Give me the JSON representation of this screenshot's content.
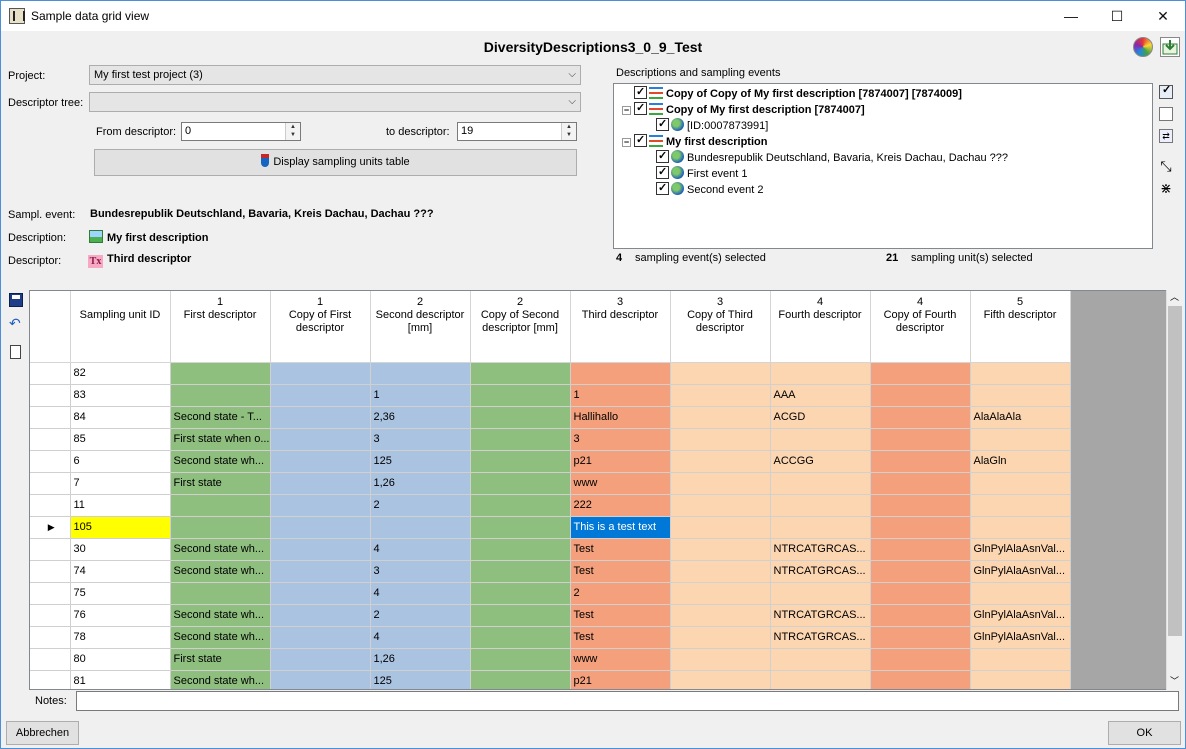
{
  "window": {
    "title": "Sample data grid view",
    "heading": "DiversityDescriptions3_0_9_Test",
    "controls": {
      "minimize": "—",
      "maximize": "☐",
      "close": "✕"
    }
  },
  "form": {
    "project_label": "Project:",
    "project_value": "My first test project (3)",
    "descriptor_tree_label": "Descriptor tree:",
    "descriptor_tree_value": "",
    "from_descriptor_label": "From descriptor:",
    "from_descriptor_value": "0",
    "to_descriptor_label": "to descriptor:",
    "to_descriptor_value": "19",
    "display_button": "Display sampling units table",
    "sampl_event_label": "Sampl. event:",
    "sampl_event_value": "Bundesrepublik Deutschland, Bavaria, Kreis Dachau, Dachau ???",
    "description_label": "Description:",
    "description_value": "My first description",
    "descriptor_label": "Descriptor:",
    "descriptor_value": "Third descriptor"
  },
  "events_panel": {
    "title": "Descriptions and sampling events",
    "tree": [
      {
        "text": "Copy of Copy of My first description [7874007] [7874009]",
        "bold": true,
        "level": 0
      },
      {
        "text": "Copy of My first description [7874007]",
        "bold": true,
        "level": 0
      },
      {
        "text": "[ID:0007873991]",
        "bold": false,
        "level": 1
      },
      {
        "text": "My first description",
        "bold": true,
        "level": 0
      },
      {
        "text": "Bundesrepublik Deutschland, Bavaria, Kreis Dachau, Dachau ???",
        "bold": false,
        "level": 1
      },
      {
        "text": "First event 1",
        "bold": false,
        "level": 1
      },
      {
        "text": "Second event 2",
        "bold": false,
        "level": 1
      }
    ],
    "events_count": "4",
    "events_text": "sampling event(s) selected",
    "units_count": "21",
    "units_text": "sampling unit(s) selected"
  },
  "grid": {
    "columns": [
      {
        "num": "",
        "title": "Sampling unit ID"
      },
      {
        "num": "1",
        "title": "First descriptor"
      },
      {
        "num": "1",
        "title": "Copy of First descriptor"
      },
      {
        "num": "2",
        "title": "Second descriptor [mm]"
      },
      {
        "num": "2",
        "title": "Copy of Second descriptor [mm]"
      },
      {
        "num": "3",
        "title": "Third descriptor"
      },
      {
        "num": "3",
        "title": "Copy of Third descriptor"
      },
      {
        "num": "4",
        "title": "Fourth descriptor"
      },
      {
        "num": "4",
        "title": "Copy of Fourth descriptor"
      },
      {
        "num": "5",
        "title": "Fifth descriptor"
      }
    ],
    "current_row_marker": "▶",
    "rows": [
      [
        "82",
        "",
        "",
        "",
        "",
        "",
        "",
        "",
        "",
        ""
      ],
      [
        "83",
        "",
        "",
        "1",
        "",
        "1",
        "",
        "AAA",
        "",
        ""
      ],
      [
        "84",
        "Second state - T...",
        "",
        "2,36",
        "",
        "Hallihallo",
        "",
        "ACGD",
        "",
        "AlaAlaAla"
      ],
      [
        "85",
        "First state when o...",
        "",
        "3",
        "",
        "3",
        "",
        "",
        "",
        ""
      ],
      [
        "6",
        "Second state wh...",
        "",
        "125",
        "",
        "p21",
        "",
        "ACCGG",
        "",
        "AlaGln"
      ],
      [
        "7",
        "First state",
        "",
        "1,26",
        "",
        "www",
        "",
        "",
        "",
        ""
      ],
      [
        "11",
        "",
        "",
        "2",
        "",
        "222",
        "",
        "",
        "",
        ""
      ],
      [
        "105",
        "",
        "",
        "",
        "",
        "This is a test text",
        "",
        "",
        "",
        ""
      ],
      [
        "30",
        "Second state wh...",
        "",
        "4",
        "",
        "Test",
        "",
        "NTRCATGRCAS...",
        "",
        "GlnPylAlaAsnVal..."
      ],
      [
        "74",
        "Second state wh...",
        "",
        "3",
        "",
        "Test",
        "",
        "NTRCATGRCAS...",
        "",
        "GlnPylAlaAsnVal..."
      ],
      [
        "75",
        "",
        "",
        "4",
        "",
        "2",
        "",
        "",
        "",
        ""
      ],
      [
        "76",
        "Second state wh...",
        "",
        "2",
        "",
        "Test",
        "",
        "NTRCATGRCAS...",
        "",
        "GlnPylAlaAsnVal..."
      ],
      [
        "78",
        "Second state wh...",
        "",
        "4",
        "",
        "Test",
        "",
        "NTRCATGRCAS...",
        "",
        "GlnPylAlaAsnVal..."
      ],
      [
        "80",
        "First state",
        "",
        "1,26",
        "",
        "www",
        "",
        "",
        "",
        ""
      ],
      [
        "81",
        "Second state wh...",
        "",
        "125",
        "",
        "p21",
        "",
        "",
        "",
        ""
      ]
    ],
    "current_row_index": 7
  },
  "footer": {
    "notes_label": "Notes:",
    "notes_value": "",
    "cancel_button": "Abbrechen",
    "ok_button": "OK"
  },
  "colors": {
    "green": "#8fbf7f",
    "blue": "#a9c3e1",
    "red": "#f5a07c",
    "peach": "#fcd5b1",
    "selection": "#0078d7",
    "current_id": "#ffff00"
  }
}
